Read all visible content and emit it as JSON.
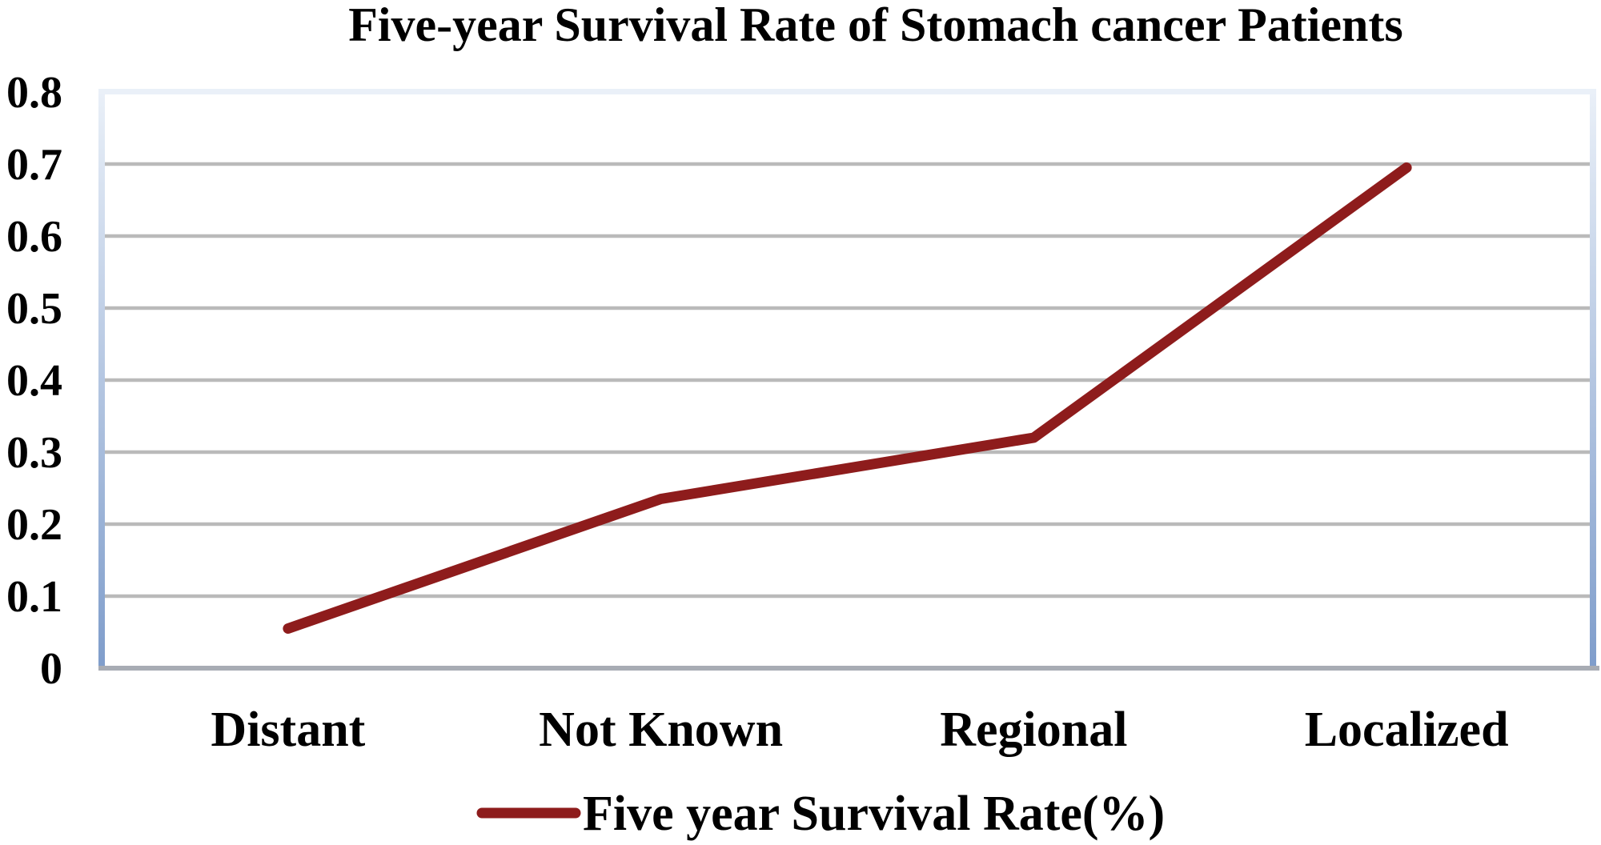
{
  "chart_data": {
    "type": "line",
    "title": "Five-year Survival Rate of Stomach cancer Patients",
    "categories": [
      "Distant",
      "Not Known",
      "Regional",
      "Localized"
    ],
    "series": [
      {
        "name": "Five year Survival Rate(%)",
        "values": [
          0.055,
          0.235,
          0.32,
          0.695
        ]
      }
    ],
    "xlabel": "",
    "ylabel": "",
    "ylim": [
      0,
      0.8
    ],
    "ytick_step": 0.1,
    "ytick_labels": [
      "0",
      "0.1",
      "0.2",
      "0.3",
      "0.4",
      "0.5",
      "0.6",
      "0.7",
      "0.8"
    ],
    "grid": true,
    "legend_position": "bottom"
  },
  "style": {
    "series_color": "#8E1C1C",
    "gridline_color": "#BABABA",
    "bottom_axis_color": "#A8ACB4",
    "border_gradient_top": "#EAF0F8",
    "border_gradient_bottom": "#7F9DCB",
    "text_color": "#000000",
    "background_color": "#FFFFFF"
  }
}
